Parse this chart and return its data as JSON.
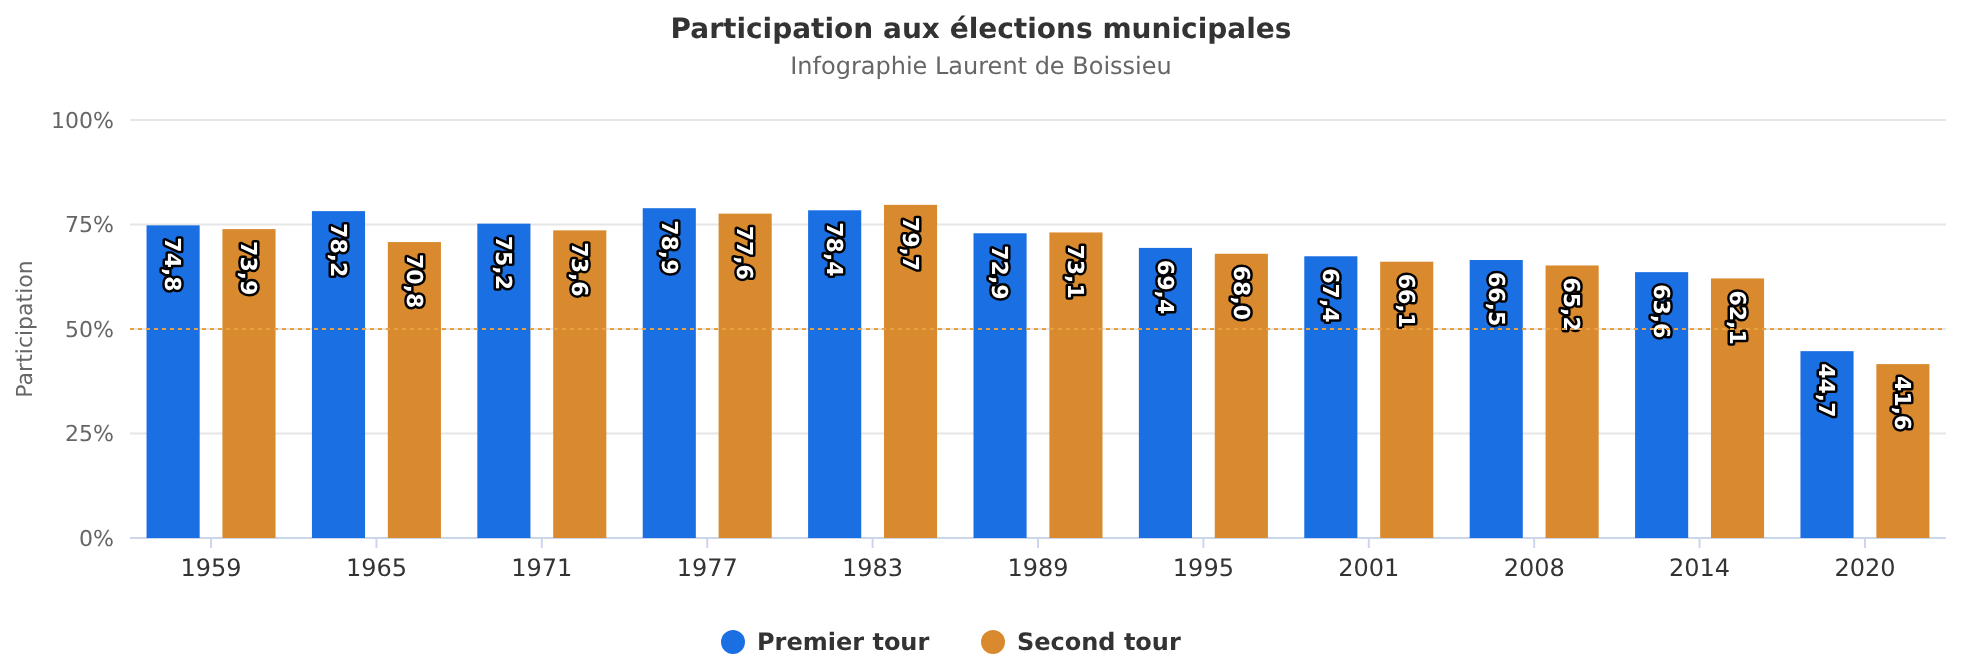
{
  "chart_data": {
    "type": "bar",
    "title": "Participation aux élections municipales",
    "subtitle": "Infographie Laurent de Boissieu",
    "ylabel": "Participation",
    "categories": [
      "1959",
      "1965",
      "1971",
      "1977",
      "1983",
      "1989",
      "1995",
      "2001",
      "2008",
      "2014",
      "2020"
    ],
    "series": [
      {
        "name": "Premier tour",
        "color": "#1a6fe3",
        "values": [
          74.8,
          78.2,
          75.2,
          78.9,
          78.4,
          72.9,
          69.4,
          67.4,
          66.5,
          63.6,
          44.7
        ],
        "value_labels": [
          "74,8",
          "78,2",
          "75,2",
          "78,9",
          "78,4",
          "72,9",
          "69,4",
          "67,4",
          "66,5",
          "63,6",
          "44,7"
        ]
      },
      {
        "name": "Second tour",
        "color": "#d98a2f",
        "values": [
          73.9,
          70.8,
          73.6,
          77.6,
          79.7,
          73.1,
          68.0,
          66.1,
          65.2,
          62.1,
          41.6
        ],
        "value_labels": [
          "73,9",
          "70,8",
          "73,6",
          "77,6",
          "79,7",
          "73,1",
          "68,0",
          "66,1",
          "65,2",
          "62,1",
          "41,6"
        ]
      }
    ],
    "ylim": [
      0,
      100
    ],
    "yticks": [
      {
        "value": 0,
        "label": "0%"
      },
      {
        "value": 25,
        "label": "25%"
      },
      {
        "value": 50,
        "label": "50%"
      },
      {
        "value": 75,
        "label": "75%"
      },
      {
        "value": 100,
        "label": "100%"
      }
    ],
    "grid": "y",
    "legend": "bottom",
    "ref_lines": [
      {
        "axis": "y",
        "value": 50,
        "color": "#e8a040",
        "line_style": "dotted"
      }
    ]
  }
}
